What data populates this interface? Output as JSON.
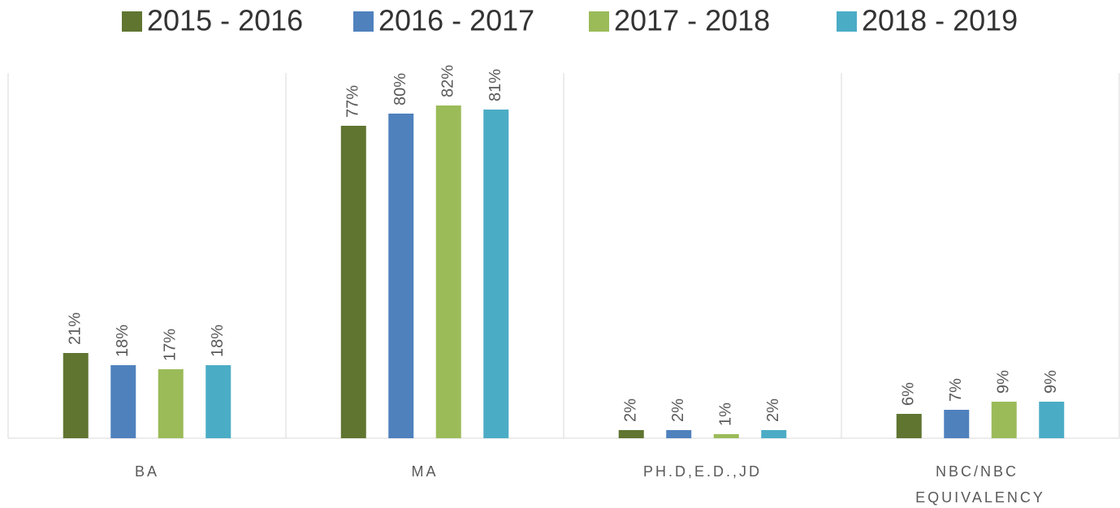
{
  "chart_data": {
    "type": "bar",
    "categories": [
      "BA",
      "MA",
      "PH.D,E.D.,JD",
      "NBC/NBC EQUIVALENCY"
    ],
    "series": [
      {
        "name": "2015 - 2016",
        "color": "#5f7530",
        "values": [
          21,
          77,
          2,
          6
        ],
        "value_labels": [
          "21%",
          "77%",
          "2%",
          "6%"
        ]
      },
      {
        "name": "2016 - 2017",
        "color": "#4f81bd",
        "values": [
          18,
          80,
          2,
          7
        ],
        "value_labels": [
          "18%",
          "80%",
          "2%",
          "7%"
        ]
      },
      {
        "name": "2017 - 2018",
        "color": "#9bbb59",
        "values": [
          17,
          82,
          1,
          9
        ],
        "value_labels": [
          "17%",
          "82%",
          "1%",
          "9%"
        ]
      },
      {
        "name": "2018 - 2019",
        "color": "#4bacc6",
        "values": [
          18,
          81,
          2,
          9
        ],
        "value_labels": [
          "18%",
          "81%",
          "2%",
          "9%"
        ]
      }
    ],
    "ylim": [
      0,
      90
    ],
    "legend": "top"
  }
}
